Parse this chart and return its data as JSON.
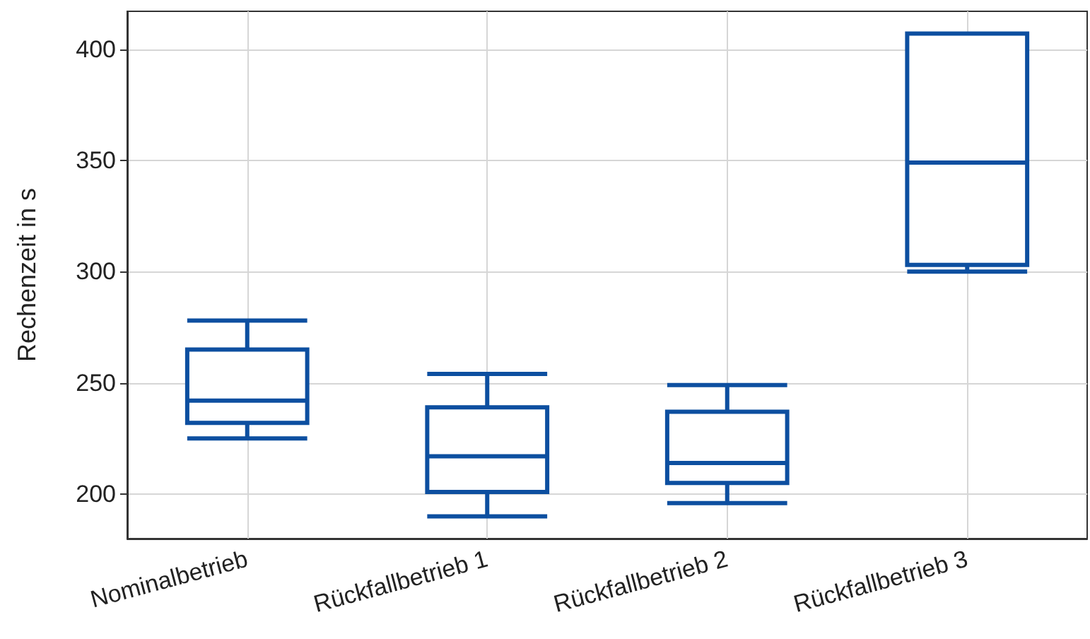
{
  "chart_data": {
    "type": "box",
    "ylabel": "Rechenzeit in s",
    "categories": [
      "Nominalbetrieb",
      "Rückfallbetrieb 1",
      "Rückfallbetrieb 2",
      "Rückfallbetrieb 3"
    ],
    "series": [
      {
        "color": "#0d4fa0",
        "boxes": [
          {
            "low": 225,
            "q1": 232,
            "median": 242,
            "q3": 265,
            "high": 278
          },
          {
            "low": 190,
            "q1": 201,
            "median": 217,
            "q3": 239,
            "high": 254
          },
          {
            "low": 196,
            "q1": 205,
            "median": 214,
            "q3": 237,
            "high": 249
          },
          {
            "low": 300,
            "q1": 303,
            "median": 349,
            "q3": 407,
            "high": 407
          }
        ]
      }
    ],
    "ylim": [
      180,
      417
    ],
    "yticks": [
      200,
      250,
      300,
      350,
      400
    ],
    "grid": true
  }
}
